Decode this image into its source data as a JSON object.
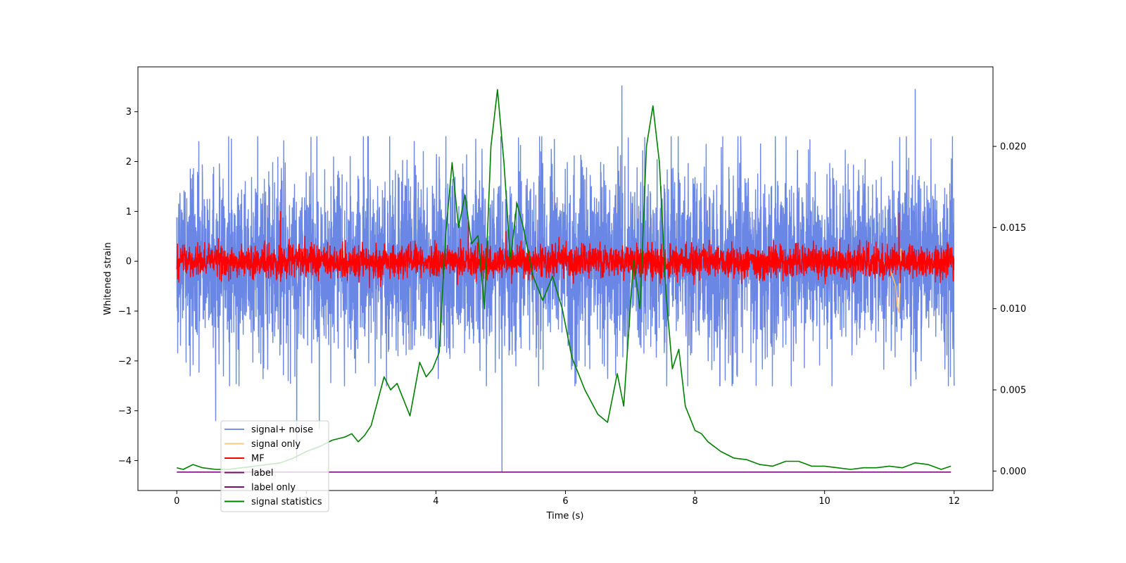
{
  "chart_data": {
    "type": "line",
    "title": "",
    "xlabel": "Time (s)",
    "ylabel": "Whitened strain",
    "y2label": "",
    "xlim": [
      -0.6,
      12.6
    ],
    "ylim": [
      -4.6,
      3.9
    ],
    "y2lim": [
      -0.0012,
      0.0249
    ],
    "x_ticks": [
      0,
      2,
      4,
      6,
      8,
      10,
      12
    ],
    "y_ticks": [
      -4,
      -3,
      -2,
      -1,
      0,
      1,
      2,
      3
    ],
    "y2_ticks": [
      "0.000",
      "0.005",
      "0.010",
      "0.015",
      "0.020"
    ],
    "legend_position": "lower-left",
    "grid": false,
    "series": [
      {
        "name": "signal+ noise",
        "color": "#6b87e6",
        "axis": "left",
        "kind": "noise",
        "x_range": [
          0,
          12
        ],
        "center": 0,
        "typical_spread": [
          -1.6,
          1.6
        ],
        "extremes": [
          -4.22,
          3.52
        ]
      },
      {
        "name": "signal only",
        "color": "#ffc06a",
        "axis": "left",
        "x": [
          10.9,
          11.0,
          11.05,
          11.1,
          11.12,
          11.15,
          11.18,
          11.2
        ],
        "y": [
          0,
          -0.15,
          -0.3,
          -0.5,
          -0.9,
          -1.03,
          0.25,
          0
        ]
      },
      {
        "name": "MF",
        "color": "#ff0000",
        "axis": "left",
        "kind": "noise",
        "x_range": [
          0,
          12
        ],
        "center": 0,
        "typical_spread": [
          -0.35,
          0.55
        ],
        "extremes": [
          -0.38,
          1.0
        ]
      },
      {
        "name": "label",
        "color": "#7b0d7b",
        "axis": "left",
        "x": [
          0,
          11.95
        ],
        "y": [
          -4.23,
          -4.23
        ]
      },
      {
        "name": "label only",
        "color": "#7b0d7b",
        "axis": "left",
        "x": [],
        "y": []
      },
      {
        "name": "signal statistics",
        "color": "#008000",
        "axis": "right",
        "x": [
          0.0,
          0.1,
          0.25,
          0.4,
          0.6,
          0.8,
          1.0,
          1.2,
          1.4,
          1.6,
          1.8,
          2.0,
          2.2,
          2.4,
          2.6,
          2.7,
          2.8,
          2.9,
          3.0,
          3.2,
          3.3,
          3.4,
          3.5,
          3.6,
          3.75,
          3.85,
          3.95,
          4.05,
          4.15,
          4.25,
          4.35,
          4.45,
          4.55,
          4.65,
          4.75,
          4.85,
          4.95,
          5.05,
          5.15,
          5.25,
          5.35,
          5.5,
          5.65,
          5.8,
          5.95,
          6.1,
          6.3,
          6.5,
          6.65,
          6.8,
          6.9,
          7.05,
          7.15,
          7.25,
          7.35,
          7.45,
          7.55,
          7.65,
          7.75,
          7.85,
          8.0,
          8.1,
          8.2,
          8.4,
          8.6,
          8.8,
          9.0,
          9.2,
          9.4,
          9.6,
          9.8,
          10.0,
          10.2,
          10.4,
          10.6,
          10.8,
          11.0,
          11.2,
          11.4,
          11.6,
          11.8,
          11.95
        ],
        "y": [
          0.0002,
          0.0001,
          0.0004,
          0.0002,
          0.0001,
          0.0001,
          0.0002,
          0.0003,
          0.0004,
          0.0005,
          0.0008,
          0.0012,
          0.0015,
          0.0019,
          0.0021,
          0.0023,
          0.0018,
          0.0022,
          0.0028,
          0.0058,
          0.005,
          0.0054,
          0.0044,
          0.0034,
          0.0067,
          0.0058,
          0.0063,
          0.0073,
          0.0145,
          0.019,
          0.015,
          0.017,
          0.014,
          0.0145,
          0.01,
          0.02,
          0.0235,
          0.019,
          0.013,
          0.0165,
          0.015,
          0.012,
          0.0105,
          0.012,
          0.01,
          0.007,
          0.005,
          0.0035,
          0.003,
          0.006,
          0.004,
          0.013,
          0.01,
          0.02,
          0.0225,
          0.019,
          0.011,
          0.0063,
          0.0075,
          0.004,
          0.0025,
          0.0023,
          0.0018,
          0.0012,
          0.0008,
          0.0007,
          0.0004,
          0.0003,
          0.0006,
          0.0006,
          0.0003,
          0.0003,
          0.0002,
          0.0001,
          0.0002,
          0.0002,
          0.0003,
          0.0002,
          0.0005,
          0.0004,
          0.0001,
          0.0003
        ]
      }
    ]
  }
}
